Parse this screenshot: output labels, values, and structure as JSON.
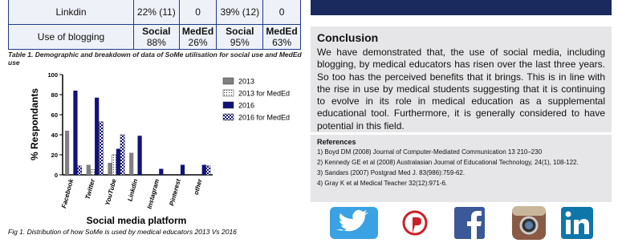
{
  "table": {
    "rows": [
      {
        "label": "Linkdin",
        "cells": [
          "22% (11)",
          "0",
          "39% (12)",
          "0"
        ]
      },
      {
        "label": "Use of blogging",
        "cells": [
          {
            "head": "Social",
            "value": "88%"
          },
          {
            "head": "MedEd",
            "value": "26%"
          },
          {
            "head": "Social",
            "value": "95%"
          },
          {
            "head": "MedEd",
            "value": "63%"
          }
        ]
      }
    ],
    "caption": "Table 1. Demographic and breakdown of data of SoMe utilisation for social use and MedEd use"
  },
  "chart_data": {
    "type": "bar",
    "ylabel": "% Respondants",
    "xlabel": "Social media platform",
    "caption": "Fig 1. Distribution of how SoMe is used by medical educators 2013 Vs 2016",
    "categories": [
      "Facebook",
      "Twitter",
      "YouTube",
      "Linkdin",
      "Instagram",
      "Pinterest",
      "other"
    ],
    "series": [
      {
        "name": "2013",
        "color": "#808080",
        "values": [
          44,
          10,
          12,
          22,
          0,
          0,
          0
        ]
      },
      {
        "name": "2013 for MedEd",
        "color": "dotted",
        "values": [
          0,
          5,
          20,
          0,
          0,
          0,
          0
        ]
      },
      {
        "name": "2016",
        "color": "#12127a",
        "values": [
          84,
          77,
          26,
          39,
          6,
          10,
          10
        ]
      },
      {
        "name": "2016 for MedEd",
        "color": "checkered",
        "values": [
          9,
          53,
          40,
          0,
          0,
          0,
          9
        ]
      }
    ],
    "ylim": [
      0,
      100
    ],
    "yticks": [
      0,
      20,
      40,
      60,
      80,
      100
    ],
    "legend": "right"
  },
  "conclusion": {
    "title": "Conclusion",
    "text": "We have demonstrated that, the use of social media, including blogging, by medical educators has risen over the last three years. So too has the perceived benefits that it brings. This is in line with the rise in use by medical students suggesting that it is continuing to evolve in its role in medical education as a supplemental educational tool. Furthermore, it is generally considered to have potential in this field."
  },
  "references": {
    "title": "References",
    "items": [
      "1) Boyd DM (2008) Journal of Computer-Mediated Communication 13  210–230",
      "2) Kennedy GE et al (2008) Australasian Journal of Educational Technology, 24(1), 108-122.",
      "3) Sandars (2007) Postgrad Med J. 83(986):759-62.",
      "4) Gray K et al  Medical Teacher 32(12):971-6."
    ]
  }
}
